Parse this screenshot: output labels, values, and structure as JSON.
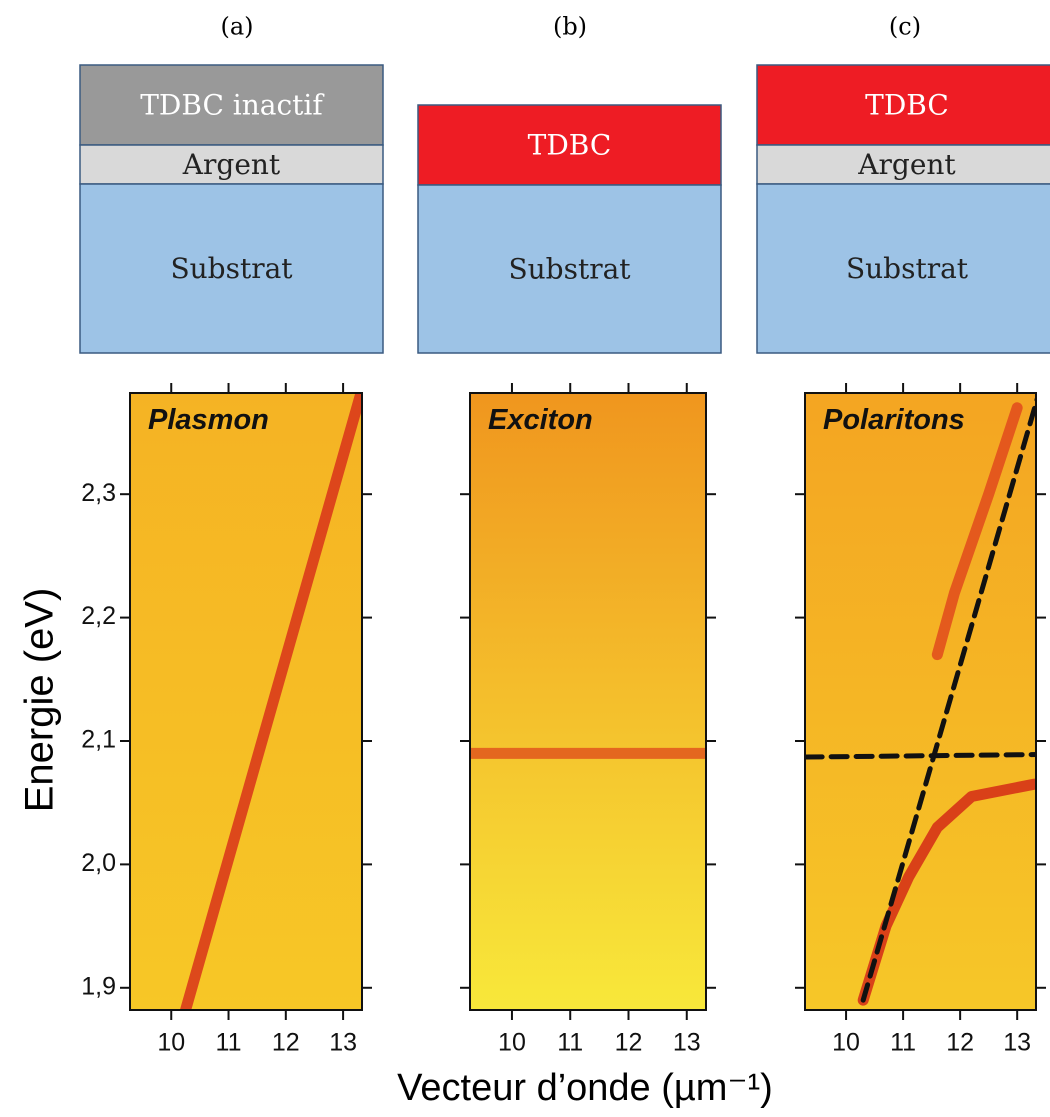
{
  "diagrams": [
    {
      "label": "(a)",
      "layers": [
        "TDBC inactif",
        "Argent",
        "Substrat"
      ]
    },
    {
      "label": "(b)",
      "layers": [
        "TDBC",
        "Substrat"
      ]
    },
    {
      "label": "(c)",
      "layers": [
        "TDBC",
        "Argent",
        "Substrat"
      ]
    }
  ],
  "chart_data": [
    {
      "type": "dispersion",
      "title": "Plasmon",
      "ylabel": "Energie (eV)",
      "xlim": [
        9.28,
        13.33
      ],
      "ylim": [
        1.882,
        2.382
      ],
      "xticks": [
        10,
        11,
        12,
        13
      ],
      "yticks": [
        {
          "value": 1.9,
          "label": "1,9"
        },
        {
          "value": 2.0,
          "label": "2,0"
        },
        {
          "value": 2.1,
          "label": "2,1"
        },
        {
          "value": 2.2,
          "label": "2,2"
        },
        {
          "value": 2.3,
          "label": "2,3"
        }
      ],
      "background": [
        "#f5b324",
        "#f7c726"
      ],
      "series": [
        {
          "color": "#d8321a",
          "style": "band",
          "x": [
            10.25,
            13.3
          ],
          "values": [
            1.882,
            2.38
          ]
        }
      ]
    },
    {
      "type": "dispersion",
      "title": "Exciton",
      "xlim": [
        9.28,
        13.33
      ],
      "ylim": [
        1.882,
        2.382
      ],
      "xticks": [
        10,
        11,
        12,
        13
      ],
      "background": [
        "#f0961e",
        "#f8e83a"
      ],
      "series": [
        {
          "color": "#e0561c",
          "style": "band",
          "x": [
            9.28,
            13.33
          ],
          "values": [
            2.09,
            2.09
          ]
        }
      ]
    },
    {
      "type": "dispersion",
      "title": "Polaritons",
      "xlim": [
        9.28,
        13.33
      ],
      "ylim": [
        1.882,
        2.382
      ],
      "xticks": [
        10,
        11,
        12,
        13
      ],
      "background": [
        "#f4a522",
        "#f6c728"
      ],
      "series": [
        {
          "color": "#d42a16",
          "style": "band",
          "x": [
            10.3,
            10.7,
            11.1,
            11.6,
            12.2,
            13.3
          ],
          "values": [
            1.89,
            1.95,
            1.99,
            2.03,
            2.055,
            2.065
          ]
        },
        {
          "color": "#e04a1c",
          "style": "band",
          "x": [
            11.6,
            11.9,
            12.5,
            13.0
          ],
          "values": [
            2.17,
            2.22,
            2.3,
            2.37
          ]
        },
        {
          "color": "#111111",
          "style": "dashed",
          "x": [
            10.3,
            13.4
          ],
          "values": [
            1.89,
            2.385
          ]
        },
        {
          "color": "#111111",
          "style": "dashed",
          "x": [
            9.3,
            13.33
          ],
          "values": [
            2.087,
            2.089
          ]
        }
      ]
    }
  ],
  "xlabel": "Vecteur d’onde (µm⁻¹)"
}
